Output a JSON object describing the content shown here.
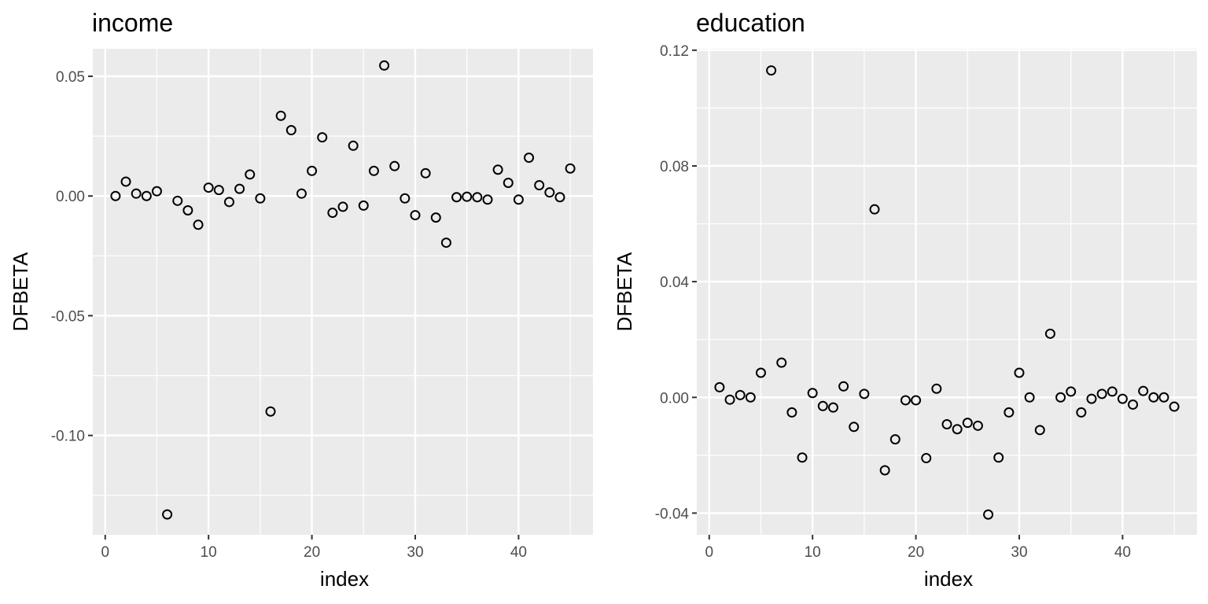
{
  "chart_data": [
    {
      "type": "scatter",
      "title": "income",
      "xlabel": "index",
      "ylabel": "DFBETA",
      "xlim": [
        -1.2,
        47.2
      ],
      "ylim": [
        -0.1415,
        0.0615
      ],
      "x_ticks": [
        0,
        10,
        20,
        30,
        40
      ],
      "x_tick_labels": [
        "0",
        "10",
        "20",
        "30",
        "40"
      ],
      "y_ticks": [
        0.05,
        0.0,
        -0.05,
        -0.1
      ],
      "y_tick_labels": [
        "0.05",
        "0.00",
        "-0.05",
        "-0.10"
      ],
      "grid": true,
      "x": [
        1,
        2,
        3,
        4,
        5,
        6,
        7,
        8,
        9,
        10,
        11,
        12,
        13,
        14,
        15,
        16,
        17,
        18,
        19,
        20,
        21,
        22,
        23,
        24,
        25,
        26,
        27,
        28,
        29,
        30,
        31,
        32,
        33,
        34,
        35,
        36,
        37,
        38,
        39,
        40,
        41,
        42,
        43,
        44,
        45
      ],
      "y": [
        0.0,
        0.006,
        0.001,
        0.0,
        0.002,
        -0.133,
        -0.002,
        -0.006,
        -0.012,
        0.0035,
        0.0025,
        -0.0025,
        0.003,
        0.009,
        -0.001,
        -0.09,
        0.0335,
        0.0275,
        0.001,
        0.0105,
        0.0245,
        -0.007,
        -0.0045,
        0.021,
        -0.004,
        0.0105,
        0.0545,
        0.0125,
        -0.001,
        -0.008,
        0.0095,
        -0.009,
        -0.0195,
        -0.0005,
        -0.0003,
        -0.0005,
        -0.0015,
        0.011,
        0.0055,
        -0.0015,
        0.016,
        0.0045,
        0.0015,
        -0.0005,
        0.0115
      ]
    },
    {
      "type": "scatter",
      "title": "education",
      "xlabel": "index",
      "ylabel": "DFBETA",
      "xlim": [
        -1.2,
        47.2
      ],
      "ylim": [
        -0.0475,
        0.1205
      ],
      "x_ticks": [
        0,
        10,
        20,
        30,
        40
      ],
      "x_tick_labels": [
        "0",
        "10",
        "20",
        "30",
        "40"
      ],
      "y_ticks": [
        0.12,
        0.08,
        0.04,
        0.0,
        -0.04
      ],
      "y_tick_labels": [
        "0.12",
        "0.08",
        "0.04",
        "0.00",
        "-0.04"
      ],
      "grid": true,
      "x": [
        1,
        2,
        3,
        4,
        5,
        6,
        7,
        8,
        9,
        10,
        11,
        12,
        13,
        14,
        15,
        16,
        17,
        18,
        19,
        20,
        21,
        22,
        23,
        24,
        25,
        26,
        27,
        28,
        29,
        30,
        31,
        32,
        33,
        34,
        35,
        36,
        37,
        38,
        39,
        40,
        41,
        42,
        43,
        44,
        45
      ],
      "y": [
        0.0035,
        -0.0008,
        0.0008,
        0.0,
        0.0085,
        0.113,
        0.012,
        -0.0052,
        -0.0208,
        0.0015,
        -0.003,
        -0.0035,
        0.0038,
        -0.0102,
        0.0012,
        0.065,
        -0.0252,
        -0.0145,
        -0.001,
        -0.001,
        -0.021,
        0.003,
        -0.0093,
        -0.011,
        -0.0088,
        -0.0098,
        -0.0405,
        -0.0208,
        -0.0052,
        0.0085,
        0.0,
        -0.0113,
        0.022,
        0.0,
        0.002,
        -0.0052,
        -0.0005,
        0.0012,
        0.002,
        -0.0005,
        -0.0025,
        0.0022,
        0.0,
        0.0,
        -0.0032
      ]
    }
  ]
}
